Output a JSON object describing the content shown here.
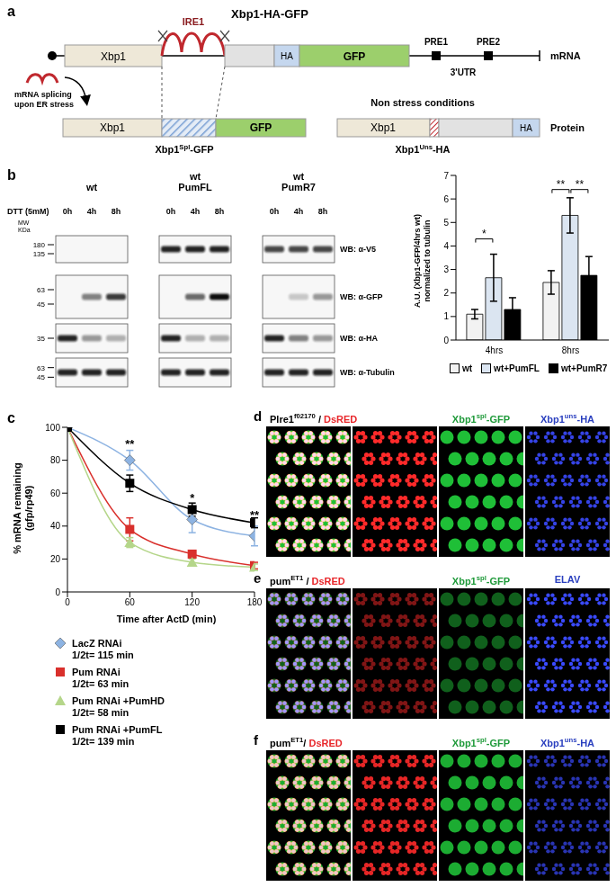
{
  "panel_letters": [
    "a",
    "b",
    "c",
    "d",
    "e",
    "f"
  ],
  "panel_a": {
    "title": "Xbp1-HA-GFP",
    "gene": "Xbp1",
    "enzyme": "IRE1",
    "tags": [
      "HA",
      "GFP"
    ],
    "elements": [
      "PRE1",
      "PRE2"
    ],
    "utr": "3'UTR",
    "row_labels": [
      "mRNA",
      "Protein"
    ],
    "splicing_note": [
      "mRNA splicing",
      "upon ER stress"
    ],
    "condition": "Non stress conditions",
    "proteins": [
      {
        "base": "Xbp1",
        "sup": "Spl",
        "suffix": "-GFP"
      },
      {
        "base": "Xbp1",
        "sup": "Uns",
        "suffix": "-HA"
      }
    ]
  },
  "panel_b": {
    "column_headers": [
      [
        "wt"
      ],
      [
        "wt",
        "PumFL"
      ],
      [
        "wt",
        "PumR7"
      ]
    ],
    "treatment": "DTT (5mM)",
    "timepoints": [
      "0h",
      "4h",
      "8h"
    ],
    "mw_label": [
      "MW",
      "KDa"
    ],
    "blots": [
      {
        "label": "WB: α-V5",
        "markers": [
          180,
          135
        ],
        "intensity": [
          0,
          0,
          0,
          0.9,
          0.9,
          0.9,
          0.75,
          0.75,
          0.75
        ]
      },
      {
        "label": "WB: α-GFP",
        "markers": [
          63,
          45
        ],
        "intensity": [
          0,
          0.5,
          0.8,
          0,
          0.6,
          1,
          0,
          0.2,
          0.4
        ]
      },
      {
        "label": "WB: α-HA",
        "markers": [
          35
        ],
        "intensity": [
          0.9,
          0.4,
          0.3,
          0.9,
          0.3,
          0.3,
          0.9,
          0.5,
          0.4
        ]
      },
      {
        "label": "WB: α-Tubulin",
        "markers": [
          63,
          45
        ],
        "intensity": [
          0.9,
          0.9,
          0.9,
          0.9,
          0.9,
          0.9,
          0.9,
          0.9,
          0.9
        ]
      }
    ]
  },
  "chart_data": [
    {
      "type": "bar",
      "y_label": [
        "A.U. (Xbp1-GFP/4hrs wt)",
        "normalized to tubulin"
      ],
      "categories": [
        "4hrs",
        "8hrs"
      ],
      "ylim": [
        0,
        7
      ],
      "yticks": [
        0,
        1,
        2,
        3,
        4,
        5,
        6,
        7
      ],
      "legend": "bottom",
      "series": [
        {
          "name": "wt",
          "color": "#f2f2f2",
          "values": [
            1.1,
            2.45
          ],
          "errors": [
            0.2,
            0.5
          ]
        },
        {
          "name": "wt+PumFL",
          "color": "#dbe5f1",
          "values": [
            2.65,
            5.3
          ],
          "errors": [
            1.0,
            0.75
          ]
        },
        {
          "name": "wt+PumR7",
          "color": "#000000",
          "values": [
            1.3,
            2.75
          ],
          "errors": [
            0.5,
            0.8
          ]
        }
      ],
      "annotations": [
        {
          "category": "4hrs",
          "from": "wt",
          "to": "wt+PumFL",
          "y": 4.3,
          "label": "*"
        },
        {
          "category": "8hrs",
          "from": "wt",
          "to": "wt+PumFL",
          "y": 6.4,
          "label": "**"
        },
        {
          "category": "8hrs",
          "from": "wt+PumFL",
          "to": "wt+PumR7",
          "y": 6.4,
          "label": "**"
        }
      ]
    },
    {
      "type": "line",
      "x_label": "Time after ActD (min)",
      "y_label": [
        "% mRNA remaining",
        "(gfp/rp49)"
      ],
      "x": [
        0,
        60,
        120,
        180
      ],
      "xlim": [
        0,
        180
      ],
      "xticks": [
        0,
        60,
        120,
        180
      ],
      "ylim": [
        0,
        100
      ],
      "yticks": [
        0,
        20,
        40,
        60,
        80,
        100
      ],
      "legend": "bottom",
      "series": [
        {
          "name": "LacZ RNAi",
          "note": "1/2t= 115 min",
          "color": "#8db3e2",
          "marker": "diamond",
          "values": [
            100,
            80,
            44,
            34
          ],
          "errors": [
            0,
            6,
            8,
            6
          ]
        },
        {
          "name": "Pum RNAi",
          "note": "1/2t= 63 min",
          "color": "#d9302c",
          "marker": "square",
          "values": [
            100,
            38,
            23,
            16
          ],
          "errors": [
            0,
            7,
            2,
            2
          ]
        },
        {
          "name": "Pum RNAi +PumHD",
          "note": "1/2t= 58 min",
          "color": "#b5d68a",
          "marker": "triangle",
          "values": [
            100,
            30,
            18,
            15
          ],
          "errors": [
            0,
            3,
            2,
            2
          ]
        },
        {
          "name": "Pum RNAi +PumFL",
          "note": "1/2t= 139 min",
          "color": "#000000",
          "marker": "square",
          "values": [
            100,
            66,
            50,
            42
          ],
          "errors": [
            0,
            5,
            4,
            3
          ]
        }
      ],
      "annotations": [
        {
          "x": 60,
          "y": 90,
          "label": "**"
        },
        {
          "x": 120,
          "y": 57,
          "label": "*"
        },
        {
          "x": 180,
          "y": 47,
          "label": "**"
        }
      ]
    }
  ],
  "panels_def": [
    {
      "letter": "d",
      "genotype": {
        "base": "Plre1",
        "sup": "f02170"
      },
      "sep": " / ",
      "channels": [
        {
          "base": "DsRED",
          "color": "#e8262a"
        },
        {
          "base": "Xbp1",
          "sup": "spl",
          "suffix": "-GFP",
          "color": "#1f9a3a"
        },
        {
          "base": "Xbp1",
          "sup": "uns",
          "suffix": "-HA",
          "color": "#2a3fbf"
        }
      ],
      "signal": [
        1,
        1,
        0.9
      ]
    },
    {
      "letter": "e",
      "genotype": {
        "base": "pum",
        "sup": "ET1"
      },
      "sep": " / ",
      "channels": [
        {
          "base": "DsRED",
          "color": "#e8262a"
        },
        {
          "base": "Xbp1",
          "sup": "spl",
          "suffix": "-GFP",
          "color": "#1f9a3a"
        },
        {
          "base": "ELAV",
          "color": "#2a3fbf"
        }
      ],
      "signal": [
        0.5,
        0.5,
        1
      ]
    },
    {
      "letter": "f",
      "genotype": {
        "base": "pum",
        "sup": "ET1"
      },
      "sep": "/ ",
      "channels": [
        {
          "base": "DsRED",
          "color": "#e8262a"
        },
        {
          "base": "Xbp1",
          "sup": "spl",
          "suffix": "-GFP",
          "color": "#1f9a3a"
        },
        {
          "base": "Xbp1",
          "sup": "uns",
          "suffix": "-HA",
          "color": "#2a3fbf"
        }
      ],
      "signal": [
        0.9,
        0.9,
        0.7
      ]
    }
  ]
}
